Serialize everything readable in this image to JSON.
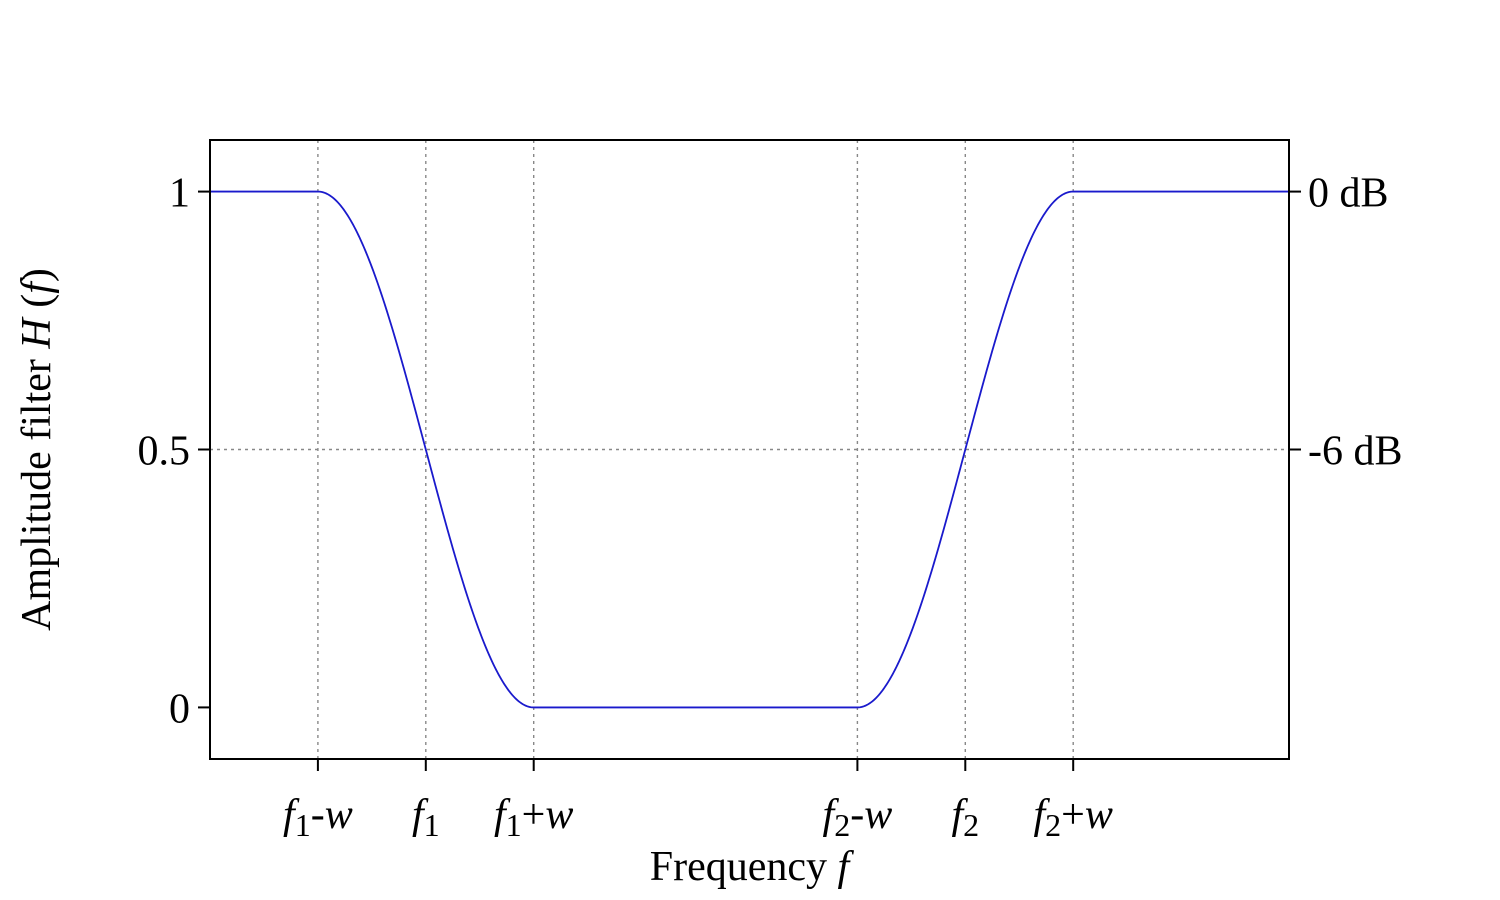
{
  "chart_data": {
    "type": "line",
    "title": "",
    "xlabel": {
      "text": "Frequency ",
      "var": "f"
    },
    "ylabel": {
      "text": "Amplitude filter ",
      "var": "H",
      "suffix": " (",
      "arg": "f",
      "close": ")"
    },
    "xlim": [
      0,
      10
    ],
    "ylim": [
      -0.1,
      1.1
    ],
    "grid": true,
    "legend": "none",
    "line_color": "#1a1acc",
    "grid_color": "#888888",
    "y_ticks": [
      {
        "value": 0,
        "label": "0"
      },
      {
        "value": 0.5,
        "label": "0.5"
      },
      {
        "value": 1,
        "label": "1"
      }
    ],
    "y2_ticks": [
      {
        "value": 1,
        "label": "0 dB"
      },
      {
        "value": 0.5,
        "label": "-6 dB"
      }
    ],
    "x_ticks": [
      {
        "value": 1,
        "var": "f",
        "sub": "1",
        "op": "-",
        "rest": "w"
      },
      {
        "value": 2,
        "var": "f",
        "sub": "1",
        "op": "",
        "rest": ""
      },
      {
        "value": 3,
        "var": "f",
        "sub": "1",
        "op": "+",
        "rest": "w"
      },
      {
        "value": 6,
        "var": "f",
        "sub": "2",
        "op": "-",
        "rest": "w"
      },
      {
        "value": 7,
        "var": "f",
        "sub": "2",
        "op": "",
        "rest": ""
      },
      {
        "value": 8,
        "var": "f",
        "sub": "2",
        "op": "+",
        "rest": "w"
      }
    ],
    "series": [
      {
        "shape": "raised-cosine band-stop",
        "f1": 2,
        "f2": 7,
        "w": 1,
        "x": [
          0,
          1,
          1.25,
          1.5,
          1.75,
          2,
          2.25,
          2.5,
          2.75,
          3,
          6,
          6.25,
          6.5,
          6.75,
          7,
          7.25,
          7.5,
          7.75,
          8,
          10
        ],
        "y": [
          1,
          1,
          0.962,
          0.854,
          0.691,
          0.5,
          0.309,
          0.146,
          0.038,
          0,
          0,
          0.038,
          0.146,
          0.309,
          0.5,
          0.691,
          0.854,
          0.962,
          1,
          1
        ]
      }
    ]
  }
}
